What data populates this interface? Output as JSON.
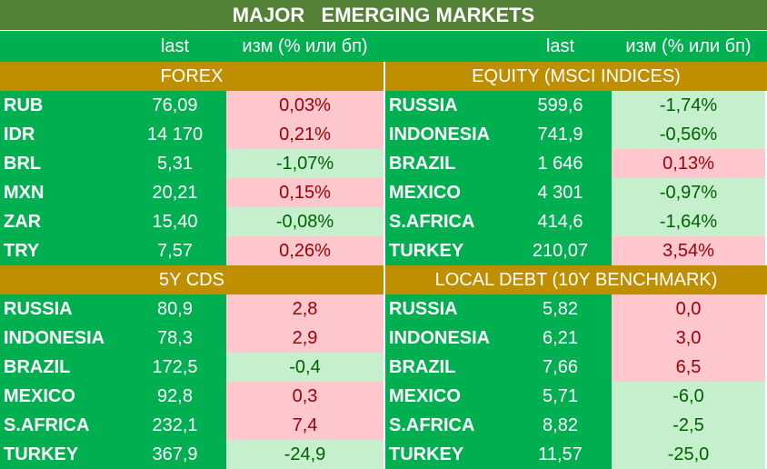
{
  "title": "MAJOR   EMERGING MARKETS",
  "header": {
    "left_last": "last",
    "left_chg": "изм (% или бп)",
    "right_last": "last",
    "right_chg": "изм (% или бп)"
  },
  "sections": {
    "forex": "FOREX",
    "equity": "EQUITY (MSCI INDICES)",
    "cds": "5Y CDS",
    "local_debt": "LOCAL DEBT (10Y BENCHMARK)"
  },
  "block1": {
    "rows": [
      {
        "l_name": "RUB",
        "l_last": "76,09",
        "l_chg": "0,03%",
        "r_name": "RUSSIA",
        "r_last": "599,6",
        "r_chg": "-1,74%"
      },
      {
        "l_name": "IDR",
        "l_last": "14 170",
        "l_chg": "0,21%",
        "r_name": "INDONESIA",
        "r_last": "741,9",
        "r_chg": "-0,56%"
      },
      {
        "l_name": "BRL",
        "l_last": "5,31",
        "l_chg": "-1,07%",
        "r_name": "BRAZIL",
        "r_last": "1 646",
        "r_chg": "0,13%"
      },
      {
        "l_name": "MXN",
        "l_last": "20,21",
        "l_chg": "0,15%",
        "r_name": "MEXICO",
        "r_last": "4 301",
        "r_chg": "-0,97%"
      },
      {
        "l_name": "ZAR",
        "l_last": "15,40",
        "l_chg": "-0,08%",
        "r_name": "S.AFRICA",
        "r_last": "414,6",
        "r_chg": "-1,64%"
      },
      {
        "l_name": "TRY",
        "l_last": "7,57",
        "l_chg": "0,26%",
        "r_name": "TURKEY",
        "r_last": "210,07",
        "r_chg": "3,54%"
      }
    ]
  },
  "block2": {
    "rows": [
      {
        "l_name": "RUSSIA",
        "l_last": "80,9",
        "l_chg": "2,8",
        "r_name": "RUSSIA",
        "r_last": "5,82",
        "r_chg": "0,0"
      },
      {
        "l_name": "INDONESIA",
        "l_last": "78,3",
        "l_chg": "2,9",
        "r_name": "INDONESIA",
        "r_last": "6,21",
        "r_chg": "3,0"
      },
      {
        "l_name": "BRAZIL",
        "l_last": "172,5",
        "l_chg": "-0,4",
        "r_name": "BRAZIL",
        "r_last": "7,66",
        "r_chg": "6,5"
      },
      {
        "l_name": "MEXICO",
        "l_last": "92,8",
        "l_chg": "0,3",
        "r_name": "MEXICO",
        "r_last": "5,71",
        "r_chg": "-6,0"
      },
      {
        "l_name": "S.AFRICA",
        "l_last": "232,1",
        "l_chg": "7,4",
        "r_name": "S.AFRICA",
        "r_last": "8,82",
        "r_chg": "-2,5"
      },
      {
        "l_name": "TURKEY",
        "l_last": "367,9",
        "l_chg": "-24,9",
        "r_name": "TURKEY",
        "r_last": "11,57",
        "r_chg": "-25,0"
      }
    ]
  },
  "colors": {
    "title_bg": "#538135",
    "green_bg": "#00b050",
    "section_bg": "#bf8f00",
    "red_fill": "#ffc7ce",
    "red_text": "#9c0006",
    "green_fill": "#c6efce",
    "green_text": "#006100"
  }
}
